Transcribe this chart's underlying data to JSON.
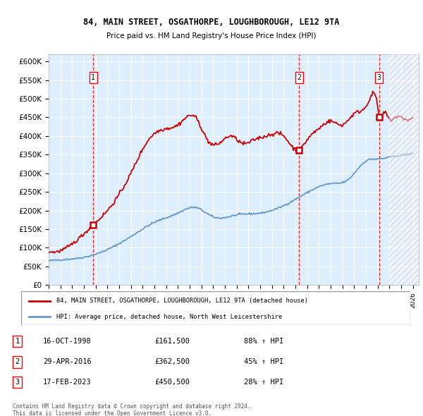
{
  "title1": "84, MAIN STREET, OSGATHORPE, LOUGHBOROUGH, LE12 9TA",
  "title2": "Price paid vs. HM Land Registry's House Price Index (HPI)",
  "legend_line1": "84, MAIN STREET, OSGATHORPE, LOUGHBOROUGH, LE12 9TA (detached house)",
  "legend_line2": "HPI: Average price, detached house, North West Leicestershire",
  "footer1": "Contains HM Land Registry data © Crown copyright and database right 2024.",
  "footer2": "This data is licensed under the Open Government Licence v3.0.",
  "transaction_display": [
    {
      "num": "1",
      "date": "16-OCT-1998",
      "price": "£161,500",
      "pct": "88% ↑ HPI"
    },
    {
      "num": "2",
      "date": "29-APR-2016",
      "price": "£362,500",
      "pct": "45% ↑ HPI"
    },
    {
      "num": "3",
      "date": "17-FEB-2023",
      "price": "£450,500",
      "pct": "28% ↑ HPI"
    }
  ],
  "trans_years": [
    1998.79,
    2016.33,
    2023.12
  ],
  "trans_prices": [
    161500,
    362500,
    450500
  ],
  "hpi_color": "#6699cc",
  "price_color": "#cc0000",
  "background_color": "#ddeeff",
  "ylim": [
    0,
    620000
  ],
  "yticks": [
    0,
    50000,
    100000,
    150000,
    200000,
    250000,
    300000,
    350000,
    400000,
    450000,
    500000,
    550000,
    600000
  ],
  "hpi_anchors_x": [
    1995.0,
    1997.0,
    1998.5,
    2000.0,
    2002.0,
    2004.0,
    2006.0,
    2007.5,
    2009.0,
    2011.0,
    2013.0,
    2015.0,
    2017.0,
    2019.0,
    2020.5,
    2022.0,
    2023.0,
    2024.0,
    2025.0,
    2026.0
  ],
  "hpi_anchors_y": [
    65000,
    70000,
    78000,
    95000,
    130000,
    168000,
    193000,
    208000,
    183000,
    188000,
    193000,
    213000,
    248000,
    272000,
    283000,
    333000,
    338000,
    343000,
    348000,
    353000
  ],
  "price_anchors_x": [
    1995.0,
    1997.0,
    1998.79,
    2000.0,
    2002.0,
    2003.5,
    2005.0,
    2006.0,
    2007.5,
    2008.5,
    2009.5,
    2010.5,
    2011.5,
    2012.5,
    2013.5,
    2014.0,
    2015.0,
    2016.33,
    2017.0,
    2018.0,
    2019.0,
    2020.0,
    2021.0,
    2022.0,
    2022.5,
    2023.0,
    2023.12,
    2023.5,
    2024.0,
    2024.5,
    2025.0,
    2026.0
  ],
  "price_anchors_y": [
    90000,
    110000,
    161500,
    200000,
    300000,
    390000,
    420000,
    430000,
    450000,
    390000,
    380000,
    400000,
    380000,
    390000,
    400000,
    405000,
    400000,
    362500,
    390000,
    420000,
    440000,
    430000,
    460000,
    480000,
    510000,
    480000,
    450500,
    460000,
    445000,
    450000,
    450000,
    450000
  ]
}
